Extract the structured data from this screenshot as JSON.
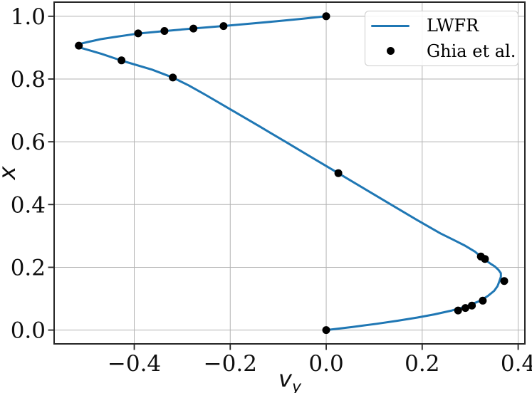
{
  "chart_data": {
    "type": "line",
    "title": "",
    "xlabel": "v_y",
    "xlabel_base": "v",
    "xlabel_sub": "y",
    "ylabel": "x",
    "xlim": [
      -0.567,
      0.414
    ],
    "ylim": [
      -0.044,
      1.045
    ],
    "xticks": [
      -0.4,
      -0.2,
      0.0,
      0.2,
      0.4
    ],
    "xtick_labels": [
      "−0.4",
      "−0.2",
      "0.0",
      "0.2",
      "0.4"
    ],
    "yticks": [
      0.0,
      0.2,
      0.4,
      0.6,
      0.8,
      1.0
    ],
    "ytick_labels": [
      "0.0",
      "0.2",
      "0.4",
      "0.6",
      "0.8",
      "1.0"
    ],
    "grid": true,
    "grid_color": "#b3b3b3",
    "spine_color": "#262626",
    "legend_position": "upper right",
    "series": [
      {
        "name": "LWFR",
        "type": "line",
        "color": "#1f77b4",
        "x": [
          0.0,
          0.055,
          0.105,
          0.15,
          0.19,
          0.225,
          0.262,
          0.28,
          0.296,
          0.322,
          0.338,
          0.35,
          0.357,
          0.361,
          0.364,
          0.364,
          0.359,
          0.351,
          0.341,
          0.331,
          0.322,
          0.31,
          0.288,
          0.262,
          0.238,
          0.19,
          0.135,
          0.08,
          0.025,
          -0.03,
          -0.085,
          -0.14,
          -0.196,
          -0.252,
          -0.287,
          -0.32,
          -0.363,
          -0.427,
          -0.468,
          -0.492,
          -0.51,
          -0.522,
          -0.513,
          -0.497,
          -0.47,
          -0.44,
          -0.414,
          -0.392,
          -0.337,
          -0.277,
          -0.214,
          -0.155,
          -0.104,
          -0.05,
          0.0
        ],
        "y": [
          0.0,
          0.01,
          0.02,
          0.03,
          0.04,
          0.05,
          0.0625,
          0.07,
          0.078,
          0.094,
          0.11,
          0.125,
          0.14,
          0.156,
          0.17,
          0.181,
          0.192,
          0.203,
          0.213,
          0.224,
          0.234,
          0.25,
          0.27,
          0.29,
          0.308,
          0.35,
          0.4,
          0.45,
          0.5,
          0.55,
          0.6,
          0.65,
          0.7,
          0.75,
          0.78,
          0.805,
          0.83,
          0.859,
          0.88,
          0.891,
          0.899,
          0.906,
          0.912,
          0.918,
          0.927,
          0.934,
          0.94,
          0.945,
          0.953,
          0.961,
          0.969,
          0.977,
          0.984,
          0.992,
          1.0
        ]
      },
      {
        "name": "Ghia et al.",
        "type": "scatter",
        "color": "#000000",
        "x": [
          0.0,
          0.27485,
          0.29012,
          0.30353,
          0.32627,
          0.37095,
          0.33075,
          0.32235,
          0.02526,
          -0.31966,
          -0.42665,
          -0.5155,
          -0.39188,
          -0.33714,
          -0.27669,
          -0.21388,
          0.0
        ],
        "y": [
          0.0,
          0.0625,
          0.0703,
          0.0781,
          0.0938,
          0.1563,
          0.2266,
          0.2344,
          0.5,
          0.8047,
          0.8594,
          0.9063,
          0.9453,
          0.9531,
          0.9609,
          0.9688,
          1.0
        ]
      }
    ]
  }
}
